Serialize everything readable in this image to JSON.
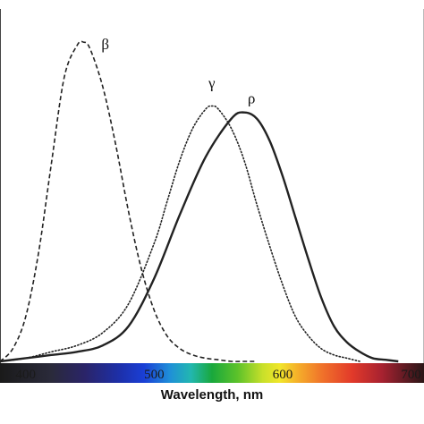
{
  "chart_data": {
    "type": "line",
    "title": "",
    "xlabel": "Wavelength, nm",
    "ylabel": "",
    "xlim": [
      380,
      710
    ],
    "ylim": [
      0,
      1.02
    ],
    "x_ticks": [
      400,
      500,
      600,
      700
    ],
    "x_tick_labels": [
      "400",
      "500",
      "600",
      "700"
    ],
    "grid": false,
    "legend": "none",
    "spectrum_bar": true,
    "series": [
      {
        "name": "β",
        "style": "dashed",
        "color": "#222222",
        "x": [
          380,
          390,
          400,
          410,
          420,
          430,
          440,
          445,
          450,
          460,
          470,
          480,
          490,
          500,
          510,
          520,
          530,
          540,
          550,
          560,
          570,
          580
        ],
        "y": [
          0.0,
          0.04,
          0.14,
          0.34,
          0.62,
          0.89,
          0.99,
          1.0,
          0.98,
          0.86,
          0.68,
          0.47,
          0.29,
          0.16,
          0.08,
          0.04,
          0.02,
          0.01,
          0.005,
          0.0,
          0.0,
          0.0
        ]
      },
      {
        "name": "γ",
        "style": "dotted",
        "color": "#222222",
        "x": [
          380,
          400,
          420,
          440,
          460,
          480,
          500,
          510,
          520,
          530,
          540,
          545,
          550,
          560,
          570,
          580,
          590,
          600,
          610,
          620,
          630,
          640,
          650,
          660
        ],
        "y": [
          0.0,
          0.01,
          0.03,
          0.05,
          0.09,
          0.18,
          0.37,
          0.5,
          0.63,
          0.73,
          0.79,
          0.8,
          0.79,
          0.73,
          0.63,
          0.49,
          0.36,
          0.24,
          0.14,
          0.08,
          0.04,
          0.02,
          0.01,
          0.0
        ]
      },
      {
        "name": "ρ",
        "style": "solid",
        "color": "#222222",
        "x": [
          380,
          400,
          420,
          440,
          460,
          480,
          500,
          520,
          540,
          560,
          570,
          580,
          590,
          600,
          610,
          620,
          630,
          640,
          650,
          660,
          670,
          680,
          690
        ],
        "y": [
          0.0,
          0.01,
          0.02,
          0.03,
          0.05,
          0.11,
          0.26,
          0.46,
          0.64,
          0.76,
          0.78,
          0.76,
          0.69,
          0.58,
          0.45,
          0.32,
          0.2,
          0.11,
          0.06,
          0.03,
          0.01,
          0.005,
          0.0
        ]
      }
    ]
  }
}
